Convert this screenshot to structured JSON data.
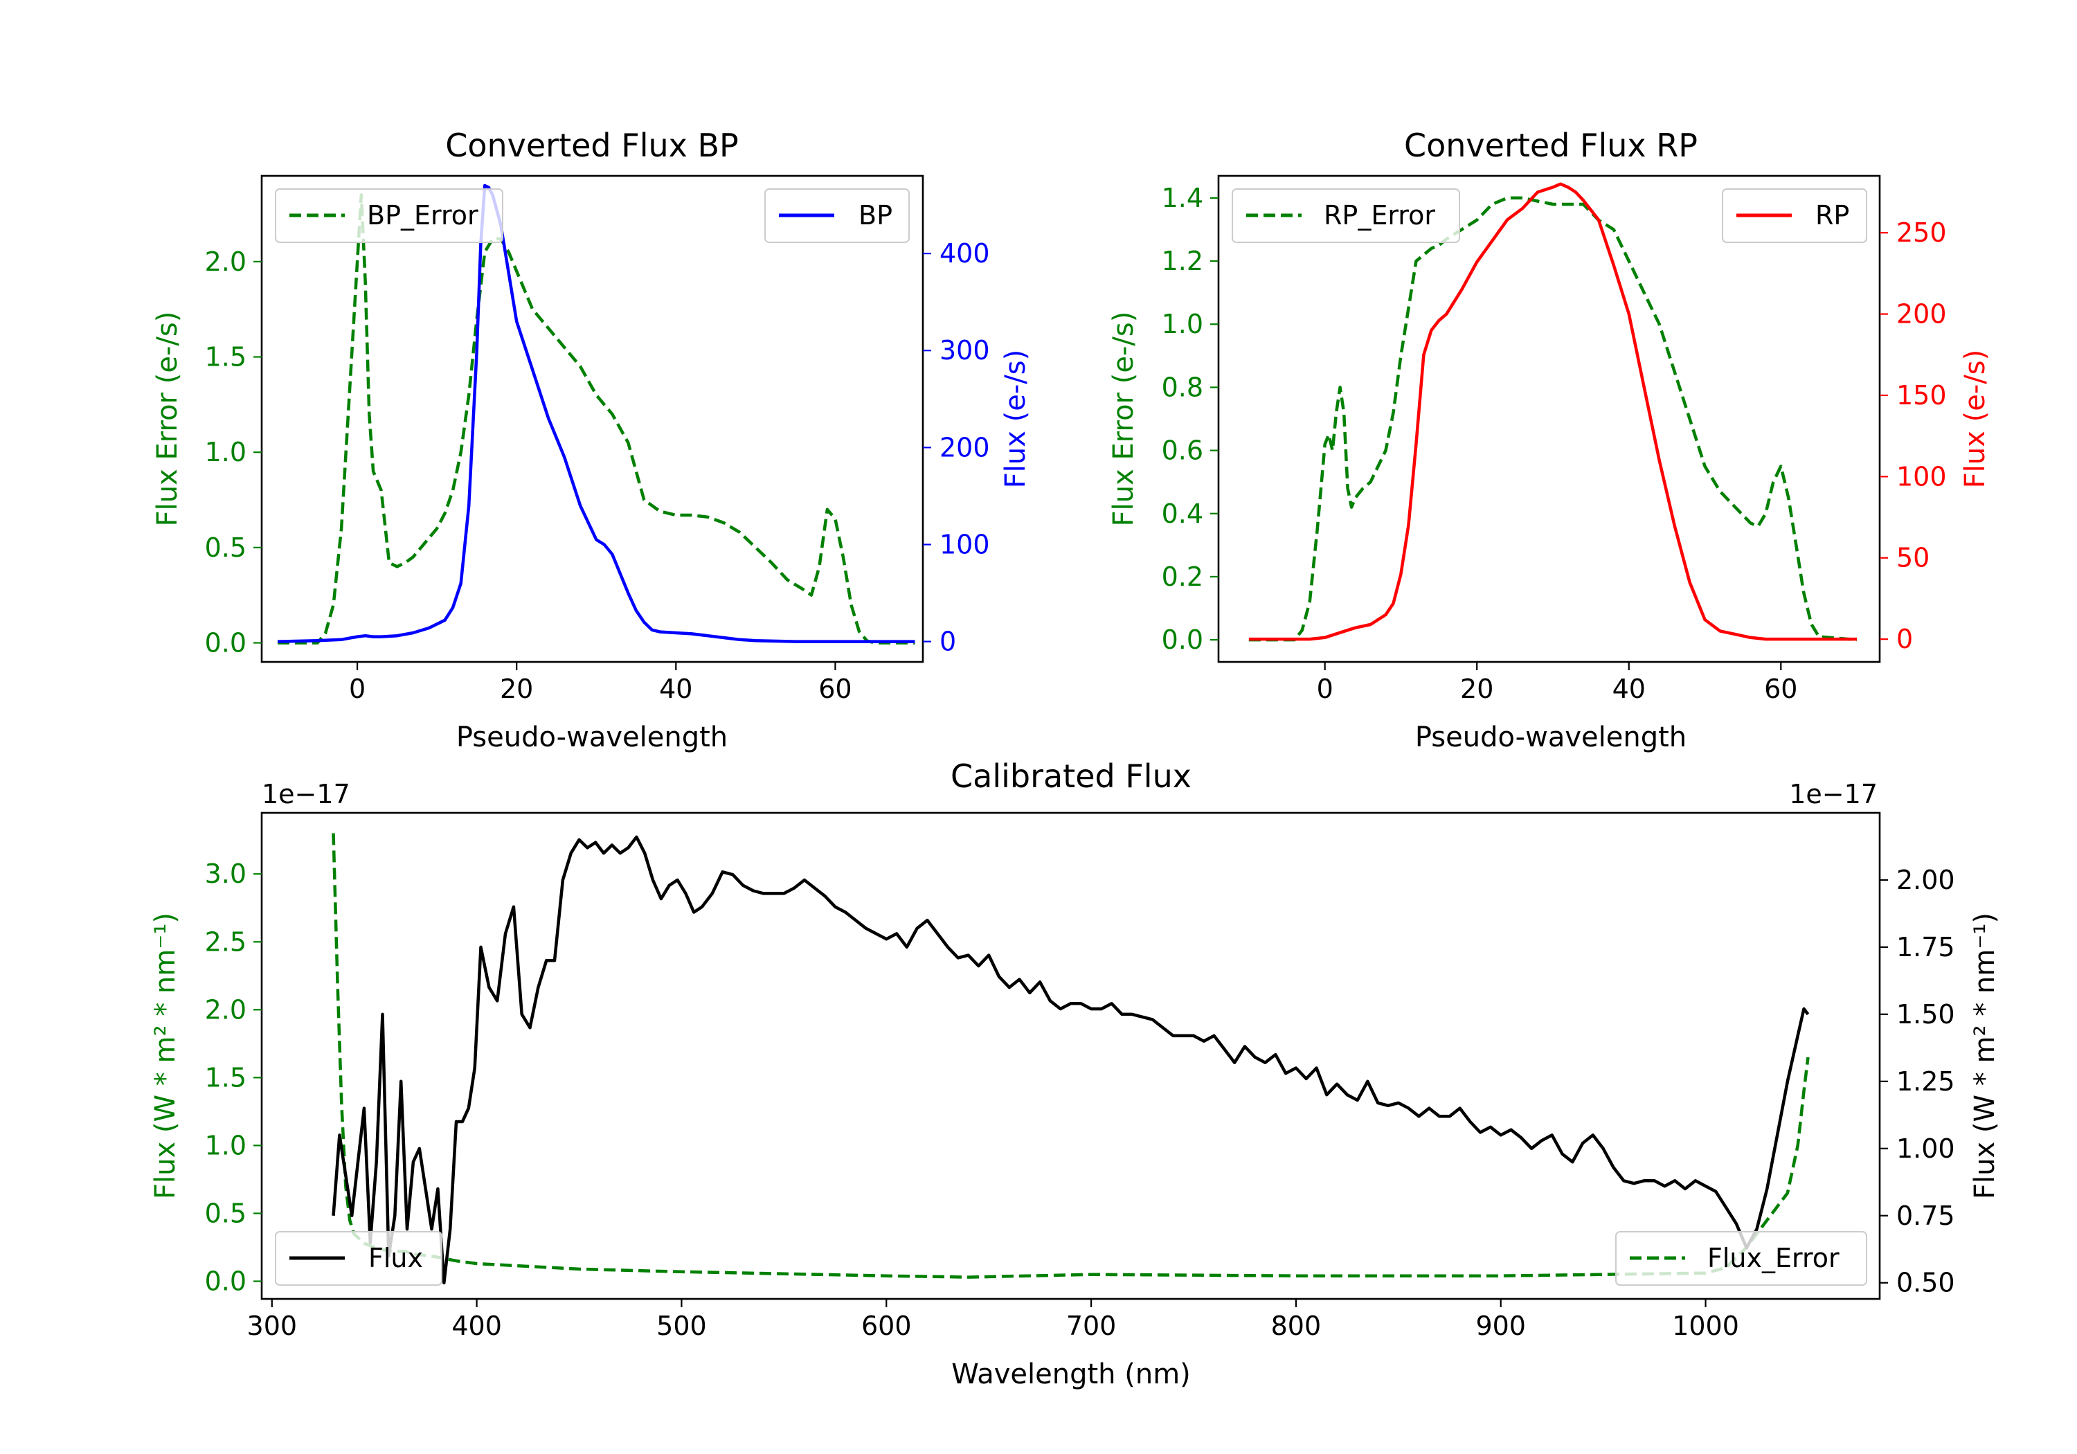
{
  "colors": {
    "green": "#008000",
    "blue": "#0000ff",
    "red": "#ff0000",
    "black": "#000000"
  },
  "chart_data": [
    {
      "id": "bp",
      "type": "line",
      "title": "Converted Flux BP",
      "xlabel": "Pseudo-wavelength",
      "ylabel_left": "Flux Error (e-/s)",
      "ylabel_right": "Flux (e-/s)",
      "xlim": [
        -12,
        71
      ],
      "ylim_left": [
        -0.1,
        2.45
      ],
      "ylim_right": [
        -21,
        480
      ],
      "xticks": [
        0,
        20,
        40,
        60
      ],
      "yticks_left": [
        0.0,
        0.5,
        1.0,
        1.5,
        2.0
      ],
      "yticks_right": [
        0,
        100,
        200,
        300,
        400
      ],
      "legend_left": {
        "label": "BP_Error",
        "position": "upper left"
      },
      "legend_right": {
        "label": "BP",
        "position": "upper right"
      },
      "series": [
        {
          "name": "BP_Error",
          "axis": "left",
          "style": "dashed",
          "color": "green",
          "x": [
            -10,
            -5,
            -4,
            -3,
            -2,
            -1,
            0,
            0.5,
            1,
            1.5,
            2,
            3,
            4,
            5,
            6,
            7,
            8,
            9,
            10,
            11,
            12,
            13,
            14,
            15,
            16,
            17,
            18,
            19,
            20,
            22,
            24,
            26,
            28,
            30,
            32,
            34,
            36,
            38,
            40,
            42,
            44,
            46,
            48,
            50,
            52,
            54,
            56,
            57,
            58,
            59,
            60,
            61,
            62,
            63,
            64,
            65,
            70
          ],
          "y": [
            0.0,
            0.0,
            0.05,
            0.2,
            0.6,
            1.3,
            2.0,
            2.35,
            1.9,
            1.2,
            0.9,
            0.8,
            0.42,
            0.4,
            0.42,
            0.45,
            0.5,
            0.55,
            0.6,
            0.68,
            0.8,
            1.0,
            1.3,
            1.7,
            2.05,
            2.12,
            2.12,
            2.05,
            1.95,
            1.75,
            1.65,
            1.55,
            1.45,
            1.3,
            1.2,
            1.05,
            0.75,
            0.69,
            0.67,
            0.67,
            0.66,
            0.63,
            0.58,
            0.5,
            0.42,
            0.33,
            0.28,
            0.25,
            0.4,
            0.7,
            0.65,
            0.45,
            0.2,
            0.06,
            0.01,
            0.0,
            0.0
          ]
        },
        {
          "name": "BP",
          "axis": "right",
          "style": "solid",
          "color": "blue",
          "x": [
            -10,
            -5,
            -2,
            0,
            1,
            2,
            3,
            5,
            7,
            9,
            11,
            12,
            13,
            14,
            15,
            15.5,
            16,
            16.5,
            17,
            18,
            19,
            20,
            22,
            24,
            26,
            28,
            30,
            31,
            32,
            33,
            34,
            35,
            36,
            37,
            38,
            40,
            42,
            44,
            46,
            48,
            50,
            55,
            60,
            65,
            70
          ],
          "y": [
            0,
            1,
            2,
            5,
            6,
            5,
            5,
            6,
            9,
            14,
            22,
            35,
            60,
            140,
            300,
            410,
            470,
            468,
            460,
            430,
            380,
            330,
            280,
            230,
            190,
            140,
            105,
            100,
            90,
            70,
            50,
            32,
            20,
            12,
            10,
            9,
            8,
            6,
            4,
            2,
            1,
            0,
            0,
            0,
            0
          ]
        }
      ]
    },
    {
      "id": "rp",
      "type": "line",
      "title": "Converted Flux RP",
      "xlabel": "Pseudo-wavelength",
      "ylabel_left": "Flux Error (e-/s)",
      "ylabel_right": "Flux (e-/s)",
      "xlim": [
        -14,
        73
      ],
      "ylim_left": [
        -0.07,
        1.47
      ],
      "ylim_right": [
        -14,
        285
      ],
      "xticks": [
        0,
        20,
        40,
        60
      ],
      "yticks_left": [
        0.0,
        0.2,
        0.4,
        0.6,
        0.8,
        1.0,
        1.2,
        1.4
      ],
      "yticks_right": [
        0,
        50,
        100,
        150,
        200,
        250
      ],
      "legend_left": {
        "label": "RP_Error",
        "position": "upper left"
      },
      "legend_right": {
        "label": "RP",
        "position": "upper right"
      },
      "series": [
        {
          "name": "RP_Error",
          "axis": "left",
          "style": "dashed",
          "color": "green",
          "x": [
            -10,
            -4,
            -3,
            -2,
            -1,
            0,
            0.5,
            1,
            1.5,
            2,
            2.5,
            3,
            3.5,
            4,
            5,
            6,
            7,
            8,
            9,
            10,
            11,
            12,
            13,
            14,
            15,
            16,
            18,
            20,
            22,
            24,
            26,
            28,
            30,
            32,
            34,
            36,
            38,
            40,
            42,
            44,
            46,
            48,
            50,
            52,
            54,
            56,
            57,
            58,
            59,
            60,
            61,
            62,
            63,
            64,
            65,
            70
          ],
          "y": [
            0.0,
            0.0,
            0.03,
            0.12,
            0.35,
            0.62,
            0.65,
            0.6,
            0.72,
            0.8,
            0.72,
            0.48,
            0.42,
            0.45,
            0.48,
            0.5,
            0.55,
            0.6,
            0.72,
            0.9,
            1.05,
            1.2,
            1.22,
            1.24,
            1.25,
            1.27,
            1.3,
            1.33,
            1.38,
            1.4,
            1.4,
            1.39,
            1.38,
            1.38,
            1.38,
            1.33,
            1.3,
            1.2,
            1.1,
            1.0,
            0.85,
            0.7,
            0.55,
            0.47,
            0.42,
            0.37,
            0.36,
            0.4,
            0.5,
            0.55,
            0.45,
            0.3,
            0.15,
            0.05,
            0.01,
            0.0
          ]
        },
        {
          "name": "RP",
          "axis": "right",
          "style": "solid",
          "color": "red",
          "x": [
            -10,
            -4,
            -2,
            0,
            2,
            4,
            6,
            8,
            9,
            10,
            11,
            12,
            13,
            14,
            15,
            16,
            18,
            20,
            22,
            24,
            26,
            28,
            30,
            31,
            32,
            33,
            34,
            36,
            38,
            40,
            42,
            44,
            46,
            48,
            50,
            52,
            54,
            56,
            58,
            60,
            65,
            70
          ],
          "y": [
            0,
            0,
            0,
            1,
            4,
            7,
            9,
            15,
            22,
            40,
            70,
            120,
            175,
            190,
            196,
            200,
            215,
            232,
            245,
            258,
            265,
            275,
            278,
            280,
            278,
            275,
            270,
            258,
            230,
            200,
            155,
            110,
            70,
            35,
            12,
            5,
            3,
            1,
            0,
            0,
            0,
            0
          ]
        }
      ]
    },
    {
      "id": "calibrated",
      "type": "line",
      "title": "Calibrated Flux",
      "xlabel": "Wavelength (nm)",
      "ylabel_left": "Flux (W * m² * nm⁻¹)",
      "ylabel_right": "Flux (W * m² * nm⁻¹)",
      "offset_left": "1e−17",
      "offset_right": "1e−17",
      "xlim": [
        295,
        1085
      ],
      "ylim_left": [
        -0.13,
        3.45
      ],
      "ylim_right": [
        0.44,
        2.25
      ],
      "xticks": [
        300,
        400,
        500,
        600,
        700,
        800,
        900,
        1000
      ],
      "yticks_left": [
        0.0,
        0.5,
        1.0,
        1.5,
        2.0,
        2.5,
        3.0
      ],
      "yticks_right": [
        0.5,
        0.75,
        1.0,
        1.25,
        1.5,
        1.75,
        2.0
      ],
      "ytick_labels_right": [
        "0.50",
        "0.75",
        "1.00",
        "1.25",
        "1.50",
        "1.75",
        "2.00"
      ],
      "legend_left": {
        "label": "Flux",
        "position": "lower left"
      },
      "legend_right": {
        "label": "Flux_Error",
        "position": "lower right"
      },
      "series": [
        {
          "name": "Flux_Error",
          "axis": "left",
          "style": "dashed",
          "color": "green",
          "x": [
            330,
            332,
            334,
            336,
            338,
            340,
            345,
            350,
            355,
            360,
            365,
            370,
            380,
            390,
            400,
            450,
            500,
            600,
            640,
            700,
            800,
            900,
            1000,
            1010,
            1020,
            1030,
            1035,
            1040,
            1045,
            1048,
            1050
          ],
          "y": [
            3.3,
            2.2,
            1.3,
            0.7,
            0.45,
            0.35,
            0.28,
            0.25,
            0.23,
            0.22,
            0.22,
            0.2,
            0.18,
            0.15,
            0.13,
            0.09,
            0.07,
            0.04,
            0.03,
            0.05,
            0.04,
            0.04,
            0.06,
            0.1,
            0.25,
            0.45,
            0.55,
            0.65,
            1.0,
            1.4,
            1.65
          ]
        },
        {
          "name": "Flux",
          "axis": "right",
          "style": "solid",
          "color": "black",
          "x": [
            330,
            333,
            336,
            339,
            342,
            345,
            348,
            351,
            354,
            357,
            360,
            363,
            366,
            369,
            372,
            375,
            378,
            381,
            384,
            387,
            390,
            393,
            396,
            399,
            402,
            406,
            410,
            414,
            418,
            422,
            426,
            430,
            434,
            438,
            442,
            446,
            450,
            454,
            458,
            462,
            466,
            470,
            474,
            478,
            482,
            486,
            490,
            494,
            498,
            502,
            506,
            510,
            515,
            520,
            525,
            530,
            535,
            540,
            545,
            550,
            555,
            560,
            565,
            570,
            575,
            580,
            585,
            590,
            595,
            600,
            605,
            610,
            615,
            620,
            625,
            630,
            635,
            640,
            645,
            650,
            655,
            660,
            665,
            670,
            675,
            680,
            685,
            690,
            695,
            700,
            705,
            710,
            715,
            720,
            730,
            740,
            750,
            755,
            760,
            765,
            770,
            775,
            780,
            785,
            790,
            795,
            800,
            805,
            810,
            815,
            820,
            825,
            830,
            835,
            840,
            845,
            850,
            855,
            860,
            865,
            870,
            875,
            880,
            885,
            890,
            895,
            900,
            905,
            910,
            915,
            920,
            925,
            930,
            935,
            940,
            945,
            950,
            955,
            960,
            965,
            970,
            975,
            980,
            985,
            990,
            995,
            1000,
            1005,
            1010,
            1015,
            1020,
            1025,
            1030,
            1035,
            1040,
            1045,
            1048,
            1050
          ],
          "y": [
            0.75,
            1.05,
            0.9,
            0.75,
            0.95,
            1.15,
            0.65,
            0.95,
            1.5,
            0.6,
            0.75,
            1.25,
            0.7,
            0.95,
            1.0,
            0.85,
            0.7,
            0.85,
            0.5,
            0.7,
            1.1,
            1.1,
            1.15,
            1.3,
            1.75,
            1.6,
            1.55,
            1.8,
            1.9,
            1.5,
            1.45,
            1.6,
            1.7,
            1.7,
            2.0,
            2.1,
            2.15,
            2.12,
            2.14,
            2.1,
            2.13,
            2.1,
            2.12,
            2.16,
            2.1,
            2.0,
            1.93,
            1.98,
            2.0,
            1.95,
            1.88,
            1.9,
            1.95,
            2.03,
            2.02,
            1.98,
            1.96,
            1.95,
            1.95,
            1.95,
            1.97,
            2.0,
            1.97,
            1.94,
            1.9,
            1.88,
            1.85,
            1.82,
            1.8,
            1.78,
            1.8,
            1.75,
            1.82,
            1.85,
            1.8,
            1.75,
            1.71,
            1.72,
            1.68,
            1.72,
            1.64,
            1.6,
            1.63,
            1.58,
            1.62,
            1.55,
            1.52,
            1.54,
            1.54,
            1.52,
            1.52,
            1.54,
            1.5,
            1.5,
            1.48,
            1.42,
            1.42,
            1.4,
            1.42,
            1.37,
            1.32,
            1.38,
            1.34,
            1.32,
            1.35,
            1.28,
            1.3,
            1.26,
            1.3,
            1.2,
            1.24,
            1.2,
            1.18,
            1.25,
            1.17,
            1.16,
            1.17,
            1.15,
            1.12,
            1.15,
            1.12,
            1.12,
            1.15,
            1.1,
            1.06,
            1.08,
            1.05,
            1.07,
            1.04,
            1.0,
            1.03,
            1.05,
            0.98,
            0.95,
            1.02,
            1.05,
            1.0,
            0.93,
            0.88,
            0.87,
            0.88,
            0.88,
            0.86,
            0.88,
            0.85,
            0.88,
            0.86,
            0.84,
            0.78,
            0.72,
            0.63,
            0.7,
            0.85,
            1.05,
            1.25,
            1.42,
            1.52,
            1.5
          ]
        }
      ]
    }
  ]
}
